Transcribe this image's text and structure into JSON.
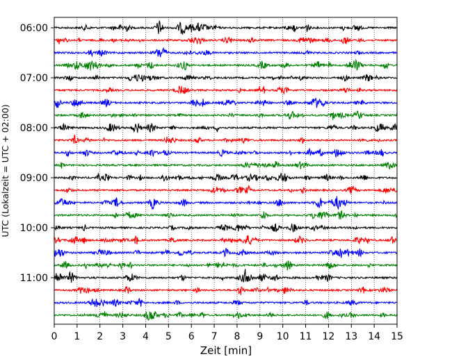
{
  "chart_data": {
    "type": "line",
    "title": "",
    "xlabel": "Zeit  [min]",
    "ylabel": "UTC (Lokalzeit = UTC + 02:00)",
    "xlim": [
      0,
      15
    ],
    "x_ticks": [
      0,
      1,
      2,
      3,
      4,
      5,
      6,
      7,
      8,
      9,
      10,
      11,
      12,
      13,
      14,
      15
    ],
    "grid": "vertical dotted",
    "legend": "none",
    "hour_ticks": [
      "06:00",
      "07:00",
      "08:00",
      "09:00",
      "10:00",
      "11:00"
    ],
    "trace_colors": [
      "#000000",
      "#ff0000",
      "#0000ff",
      "#008000"
    ],
    "trace_start_times": [
      "06:00",
      "06:15",
      "06:30",
      "06:45",
      "07:00",
      "07:15",
      "07:30",
      "07:45",
      "08:00",
      "08:15",
      "08:30",
      "08:45",
      "09:00",
      "09:15",
      "09:30",
      "09:45",
      "10:00",
      "10:15",
      "10:30",
      "10:45",
      "11:00",
      "11:15",
      "11:30",
      "11:45"
    ]
  }
}
